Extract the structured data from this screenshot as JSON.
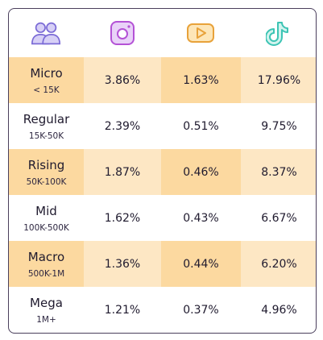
{
  "header": {
    "icons": [
      "people-icon",
      "instagram-icon",
      "youtube-icon",
      "tiktok-icon"
    ],
    "colors": {
      "people": "#7b6bd6",
      "instagram": "#b452d6",
      "youtube": "#e8a23a",
      "tiktok": "#3cc4b4"
    }
  },
  "rows": [
    {
      "tier": "Micro",
      "range": "< 15K",
      "instagram": "3.86%",
      "youtube": "1.63%",
      "tiktok": "17.96%"
    },
    {
      "tier": "Regular",
      "range": "15K-50K",
      "instagram": "2.39%",
      "youtube": "0.51%",
      "tiktok": "9.75%"
    },
    {
      "tier": "Rising",
      "range": "50K-100K",
      "instagram": "1.87%",
      "youtube": "0.46%",
      "tiktok": "8.37%"
    },
    {
      "tier": "Mid",
      "range": "100K-500K",
      "instagram": "1.62%",
      "youtube": "0.43%",
      "tiktok": "6.67%"
    },
    {
      "tier": "Macro",
      "range": "500K-1M",
      "instagram": "1.36%",
      "youtube": "0.44%",
      "tiktok": "6.20%"
    },
    {
      "tier": "Mega",
      "range": "1M+",
      "instagram": "1.21%",
      "youtube": "0.37%",
      "tiktok": "4.96%"
    }
  ],
  "colors": {
    "row_highlight": "#fde7c4",
    "cell_highlight": "#fcd9a0",
    "border": "#4a3f5c",
    "text": "#1f1a2e"
  }
}
